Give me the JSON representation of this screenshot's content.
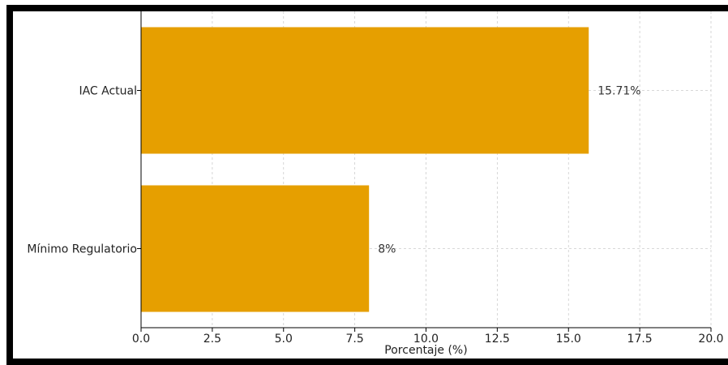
{
  "chart_data": {
    "type": "bar",
    "orientation": "horizontal",
    "categories": [
      "IAC Actual",
      "Mínimo Regulatorio"
    ],
    "values": [
      15.71,
      8
    ],
    "data_labels": [
      "15.71%",
      "8%"
    ],
    "xlabel": "Porcentaje (%)",
    "ylabel": "",
    "xlim": [
      0,
      20
    ],
    "xticks": [
      "0.0",
      "2.5",
      "5.0",
      "7.5",
      "10.0",
      "12.5",
      "15.0",
      "17.5",
      "20.0"
    ],
    "grid": true,
    "bar_color": "#E69F00",
    "grid_color": "#cccccc"
  }
}
